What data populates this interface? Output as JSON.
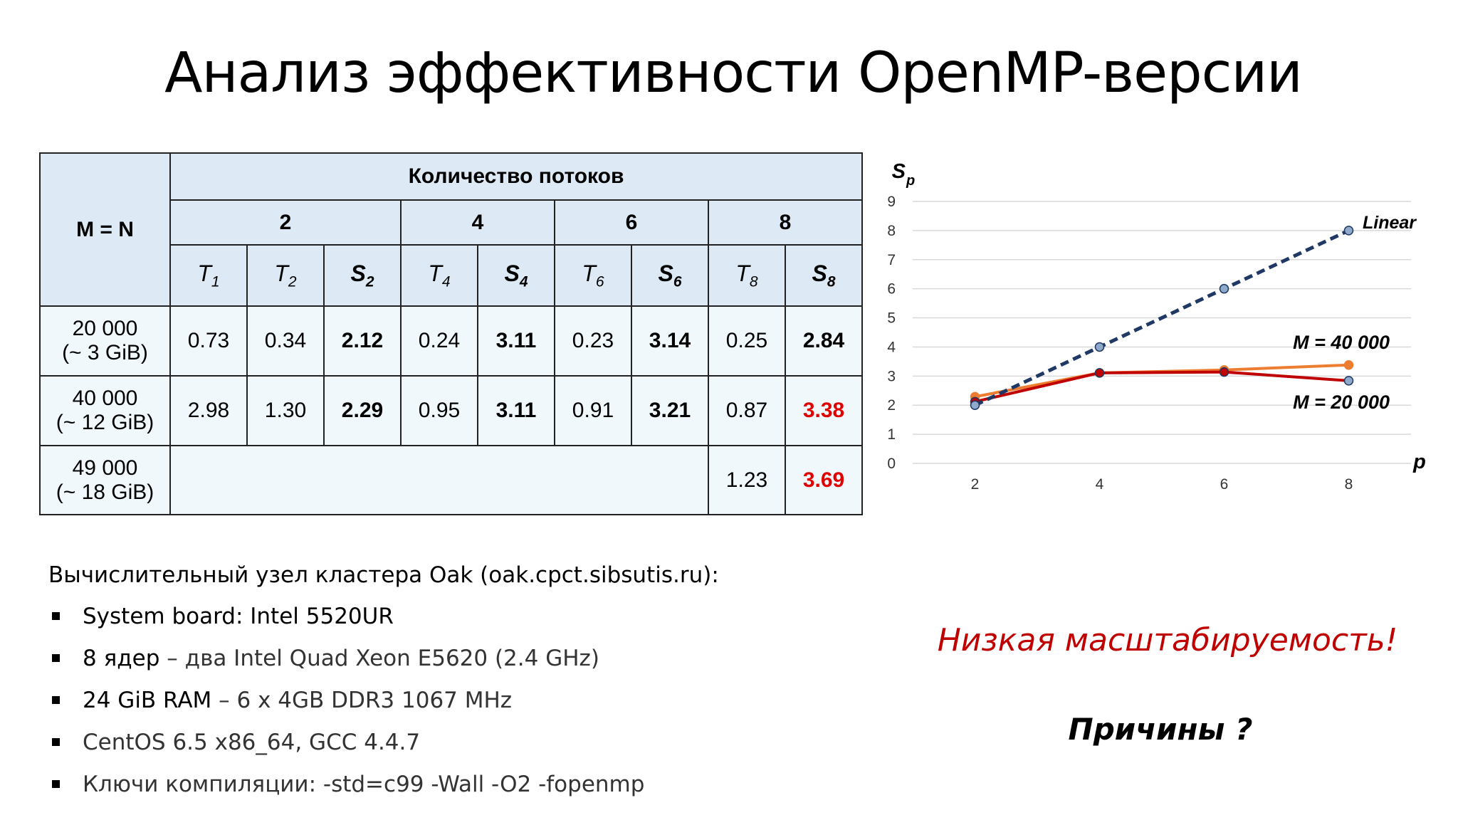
{
  "slide": {
    "title": "Анализ эффективности OpenMP-версии"
  },
  "table": {
    "corner_label": "M = N",
    "threads_header": "Количество потоков",
    "thread_counts": [
      "2",
      "4",
      "6",
      "8"
    ],
    "sub_headers": [
      {
        "letter": "T",
        "sub": "1",
        "bold": false
      },
      {
        "letter": "T",
        "sub": "2",
        "bold": false
      },
      {
        "letter": "S",
        "sub": "2",
        "bold": true
      },
      {
        "letter": "T",
        "sub": "4",
        "bold": false
      },
      {
        "letter": "S",
        "sub": "4",
        "bold": true
      },
      {
        "letter": "T",
        "sub": "6",
        "bold": false
      },
      {
        "letter": "S",
        "sub": "6",
        "bold": true
      },
      {
        "letter": "T",
        "sub": "8",
        "bold": false
      },
      {
        "letter": "S",
        "sub": "8",
        "bold": true
      }
    ],
    "rows": [
      {
        "size": "20 000",
        "mem": "(~ 3 GiB)",
        "cells": [
          "0.73",
          "0.34",
          "2.12",
          "0.24",
          "3.11",
          "0.23",
          "3.14",
          "0.25",
          "2.84"
        ]
      },
      {
        "size": "40 000",
        "mem": "(~ 12 GiB)",
        "cells": [
          "2.98",
          "1.30",
          "2.29",
          "0.95",
          "3.11",
          "0.91",
          "3.21",
          "0.87",
          "3.38"
        ]
      },
      {
        "size": "49 000",
        "mem": "(~ 18 GiB)",
        "cells": [
          "1.23",
          "3.69"
        ]
      }
    ]
  },
  "chart_data": {
    "type": "line",
    "ylabel": "S",
    "ylabel_sub": "p",
    "xlabel": "p",
    "x": [
      2,
      4,
      6,
      8
    ],
    "xticks": [
      "2",
      "4",
      "6",
      "8"
    ],
    "ylim": [
      0,
      9
    ],
    "yticks": [
      "0",
      "1",
      "2",
      "3",
      "4",
      "5",
      "6",
      "7",
      "8",
      "9"
    ],
    "grid": true,
    "series": [
      {
        "name": "Linear",
        "values": [
          2,
          4,
          6,
          8
        ],
        "color": "#1f3864",
        "style": "dashed"
      },
      {
        "name": "M = 40 000",
        "values": [
          2.29,
          3.11,
          3.21,
          3.38
        ],
        "color": "#ed7d31",
        "style": "solid"
      },
      {
        "name": "M = 20 000",
        "values": [
          2.12,
          3.11,
          3.14,
          2.84
        ],
        "color": "#c00000",
        "style": "solid"
      }
    ]
  },
  "node_info": {
    "header": "Вычислительный узел кластера Oak (oak.cpct.sibsutis.ru):",
    "items": [
      {
        "strong": "System board: Intel 5520UR",
        "rest": ""
      },
      {
        "strong": "8 ядер",
        "rest": " – два Intel Quad Xeon E5620 (2.4 GHz)"
      },
      {
        "strong": "24 GiB RAM",
        "rest": " – 6 x 4GB DDR3 1067 MHz"
      },
      {
        "strong": "",
        "rest": "CentOS 6.5 x86_64, GCC 4.4.7"
      },
      {
        "strong": "",
        "rest": "Ключи компиляции: -std=c99 -Wall -O2 -fopenmp"
      }
    ]
  },
  "notes": {
    "scalability": "Низкая масштабируемость!",
    "reasons": "Причины ?"
  }
}
